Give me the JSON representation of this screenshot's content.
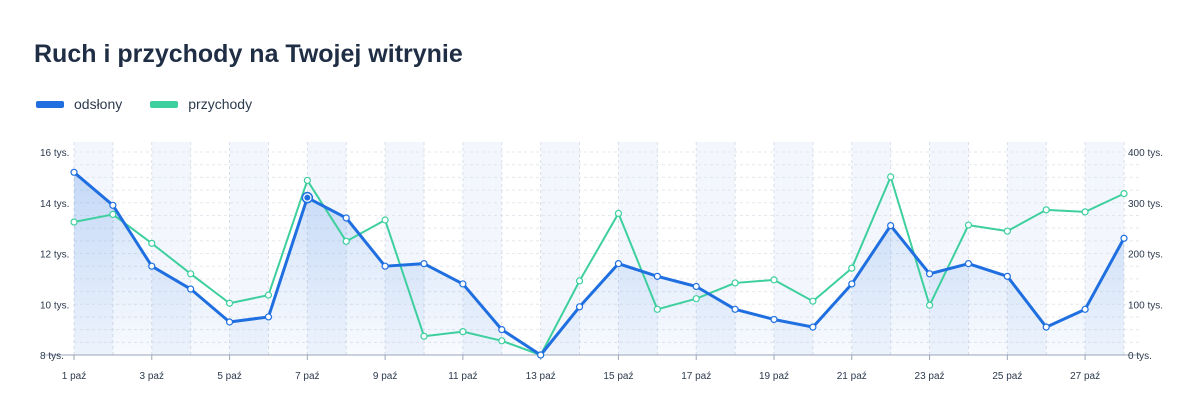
{
  "title": "Ruch i przychody na Twojej witrynie",
  "colors": {
    "views": "#1f6fe0",
    "revenue": "#3ecf9e",
    "band": "#e9f0fb",
    "grid": "#d9dee7",
    "axis": "#9aa6b8"
  },
  "legend": [
    {
      "name": "odsłony",
      "color": "#1f6fe0"
    },
    {
      "name": "przychody",
      "color": "#3ecf9e"
    }
  ],
  "chart_data": {
    "type": "line",
    "x": [
      "1 paź",
      "2 paź",
      "3 paź",
      "4 paź",
      "5 paź",
      "6 paź",
      "7 paź",
      "8 paź",
      "9 paź",
      "10 paź",
      "11 paź",
      "12 paź",
      "13 paź",
      "14 paź",
      "15 paź",
      "16 paź",
      "17 paź",
      "18 paź",
      "19 paź",
      "20 paź",
      "21 paź",
      "22 paź",
      "23 paź",
      "24 paź",
      "25 paź",
      "26 paź",
      "27 paź",
      "28 paź"
    ],
    "xtick_labels": [
      "1 paź",
      "3 paź",
      "5 paź",
      "7 paź",
      "9 paź",
      "11 paź",
      "13 paź",
      "15 paź",
      "17 paź",
      "19 paź",
      "21 paź",
      "23 paź",
      "25 paź",
      "27 paź"
    ],
    "y_left": {
      "ticks": [
        8,
        10,
        12,
        14,
        16
      ],
      "tick_labels": [
        "8 tys.",
        "10 tys.",
        "12 tys.",
        "14 tys.",
        "16 tys."
      ],
      "ylim": [
        8,
        16
      ]
    },
    "y_right": {
      "ticks": [
        0,
        100,
        200,
        300,
        400
      ],
      "tick_labels": [
        "0 tys.",
        "100 tys.",
        "200 tys.",
        "300 tys.",
        "400 tys."
      ],
      "ylim": [
        0,
        400
      ]
    },
    "series": [
      {
        "name": "odsłony",
        "axis": "left",
        "values": [
          15.2,
          13.9,
          11.5,
          10.6,
          9.3,
          9.5,
          14.2,
          13.4,
          11.5,
          11.6,
          10.8,
          9.0,
          8.0,
          9.9,
          11.6,
          11.1,
          10.7,
          9.8,
          9.4,
          9.1,
          10.8,
          13.1,
          11.2,
          11.6,
          11.1,
          9.1,
          9.8,
          12.6
        ],
        "highlight_index": 6
      },
      {
        "name": "przychody",
        "axis": "right",
        "values": [
          262,
          277,
          220,
          160,
          102,
          118,
          344,
          224,
          266,
          37,
          46,
          28,
          0,
          146,
          279,
          90,
          111,
          142,
          148,
          106,
          171,
          351,
          98,
          256,
          244,
          286,
          282,
          318
        ]
      }
    ],
    "grid": true,
    "legend_position": "top-left"
  }
}
